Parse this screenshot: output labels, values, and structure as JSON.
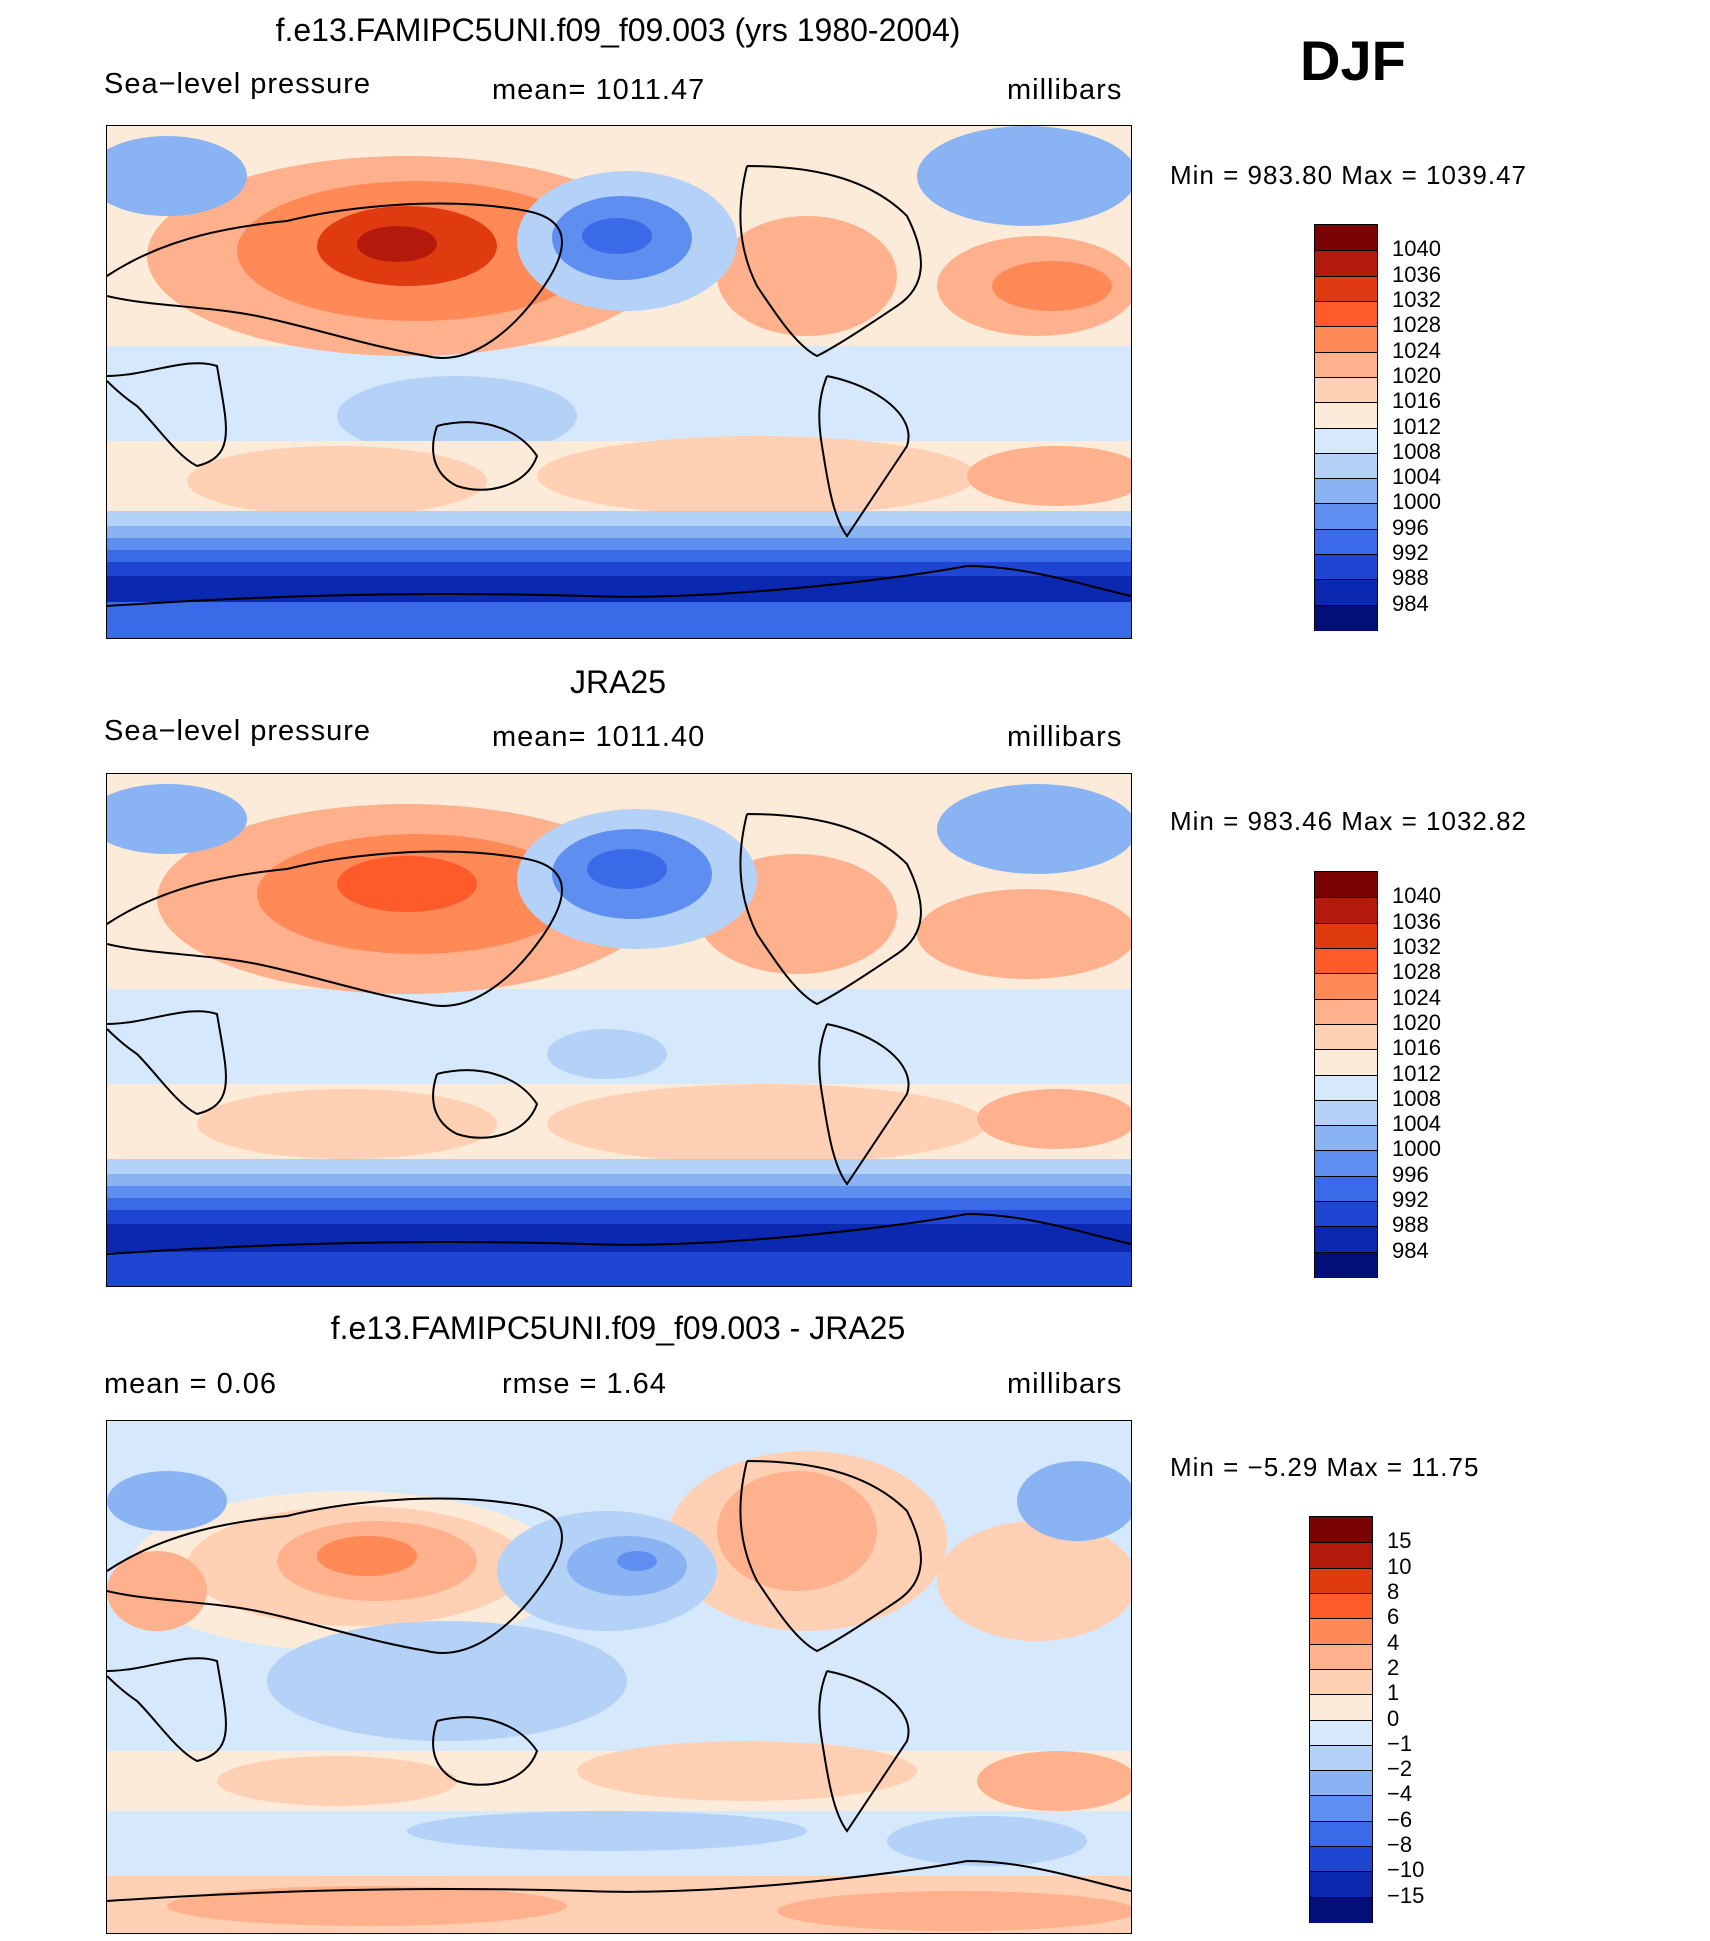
{
  "season": "DJF",
  "panels": [
    {
      "title": "f.e13.FAMIPC5UNI.f09_f09.003 (yrs 1980-2004)",
      "left_text": "Sea−level pressure",
      "center_text": "mean=  1011.47",
      "right_text": "millibars",
      "minmax": "Min  =  983.80  Max  =  1039.47",
      "colorbar_labels": [
        "1040",
        "1036",
        "1032",
        "1028",
        "1024",
        "1020",
        "1016",
        "1012",
        "1008",
        "1004",
        "1000",
        "996",
        "992",
        "988",
        "984"
      ]
    },
    {
      "title": "JRA25",
      "left_text": "Sea−level pressure",
      "center_text": "mean=  1011.40",
      "right_text": "millibars",
      "minmax": "Min  =  983.46  Max  =  1032.82",
      "colorbar_labels": [
        "1040",
        "1036",
        "1032",
        "1028",
        "1024",
        "1020",
        "1016",
        "1012",
        "1008",
        "1004",
        "1000",
        "996",
        "992",
        "988",
        "984"
      ]
    },
    {
      "title": "f.e13.FAMIPC5UNI.f09_f09.003 - JRA25",
      "left_text": "mean  =      0.06",
      "center_text": "rmse  =      1.64",
      "right_text": "millibars",
      "minmax": "Min  =    −5.29  Max  =     11.75",
      "colorbar_labels": [
        "15",
        "10",
        "8",
        "6",
        "4",
        "2",
        "1",
        "0",
        "−1",
        "−2",
        "−4",
        "−6",
        "−8",
        "−10",
        "−15"
      ]
    }
  ],
  "colorbar_colors": [
    "#7a0403",
    "#b31a0b",
    "#e03a10",
    "#ff5a2a",
    "#ff8a58",
    "#ffb08c",
    "#ffd0b4",
    "#fdebd9",
    "#d6e8fb",
    "#b4d1f8",
    "#8ab3f4",
    "#5e8ff0",
    "#3a6ae8",
    "#1e46d2",
    "#0a28b0",
    "#020f78"
  ]
}
